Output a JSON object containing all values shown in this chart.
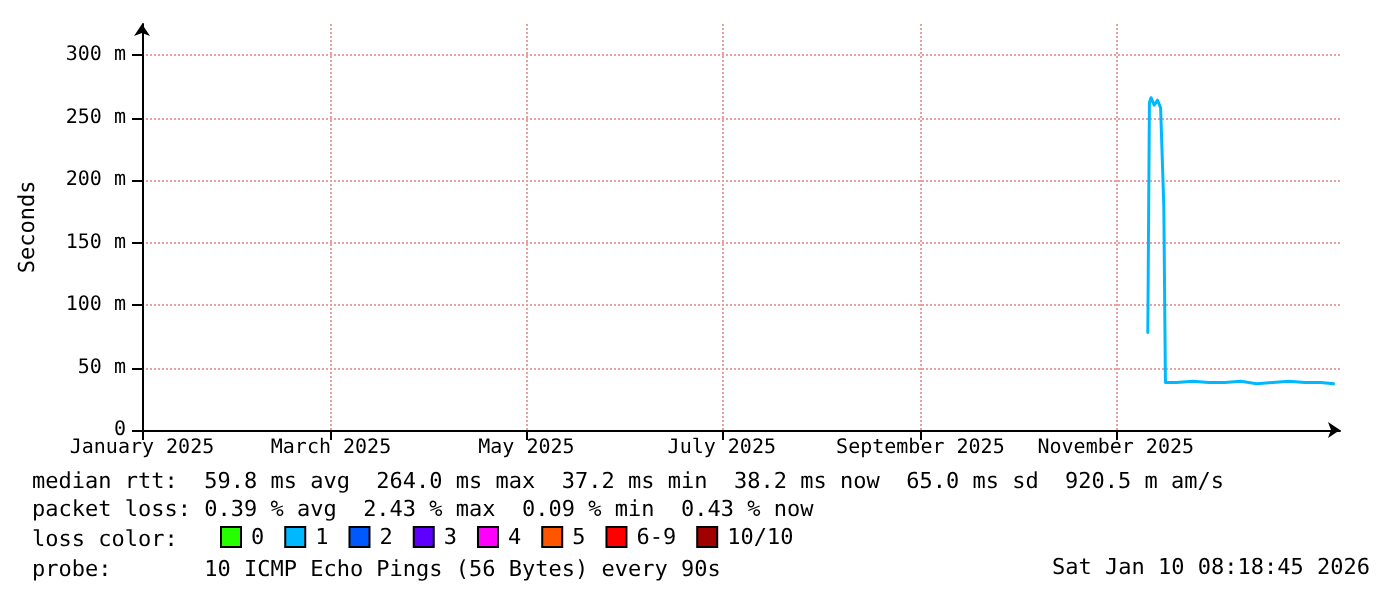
{
  "chart_data": {
    "type": "line",
    "ylabel": "Seconds",
    "xlim": [
      "2025-01-01",
      "2026-01-10"
    ],
    "xticks": [
      {
        "value": "2025-01-01",
        "label": "January 2025"
      },
      {
        "value": "2025-03-01",
        "label": "March 2025"
      },
      {
        "value": "2025-05-01",
        "label": "May 2025"
      },
      {
        "value": "2025-07-01",
        "label": "July 2025"
      },
      {
        "value": "2025-09-01",
        "label": "September 2025"
      },
      {
        "value": "2025-11-01",
        "label": "November 2025"
      }
    ],
    "ylim": [
      0,
      325
    ],
    "yticks": [
      0,
      {
        "value": 50,
        "label": "50 m"
      },
      {
        "value": 100,
        "label": "100 m"
      },
      {
        "value": 150,
        "label": "150 m"
      },
      {
        "value": 200,
        "label": "200 m"
      },
      {
        "value": 250,
        "label": "250 m"
      },
      {
        "value": 300,
        "label": "300 m"
      }
    ],
    "grid": true,
    "legend": "bottom left",
    "marker": "none",
    "line_style": "solid",
    "x": [
      "2025-11-11",
      "2025-11-11T12:00",
      "2025-11-12",
      "2025-11-13",
      "2025-11-14",
      "2025-11-15",
      "2025-11-16",
      "2025-11-16T12:00",
      "2025-11-20",
      "2025-11-25",
      "2025-11-30",
      "2025-12-05",
      "2025-12-10",
      "2025-12-15",
      "2025-12-20",
      "2025-12-25",
      "2025-12-30",
      "2026-01-04",
      "2026-01-08"
    ],
    "series": [
      {
        "name": "0",
        "color": "#26ff00",
        "values": [
          null,
          null,
          null,
          null,
          null,
          null,
          null,
          null,
          null,
          null,
          null,
          null,
          null,
          null,
          null,
          null,
          null,
          null,
          null
        ]
      },
      {
        "name": "1",
        "color": "#00b8ff",
        "values": [
          78,
          262,
          266,
          260,
          264,
          258,
          179,
          38,
          38,
          39,
          38,
          38,
          39,
          37,
          38,
          39,
          38,
          38,
          37
        ]
      },
      {
        "name": "2",
        "color": "#0059ff",
        "values": [
          null,
          null,
          null,
          null,
          null,
          null,
          null,
          null,
          null,
          null,
          null,
          null,
          null,
          null,
          null,
          null,
          null,
          null,
          null
        ]
      },
      {
        "name": "3",
        "color": "#5e00ff",
        "values": [
          null,
          null,
          null,
          null,
          null,
          null,
          null,
          null,
          null,
          null,
          null,
          null,
          null,
          null,
          null,
          null,
          null,
          null,
          null
        ]
      },
      {
        "name": "4",
        "color": "#ff00ff",
        "values": [
          null,
          null,
          null,
          null,
          null,
          null,
          null,
          null,
          null,
          null,
          null,
          null,
          null,
          null,
          null,
          null,
          null,
          null,
          null
        ]
      },
      {
        "name": "5",
        "color": "#ff5500",
        "values": [
          null,
          null,
          null,
          null,
          null,
          null,
          null,
          null,
          null,
          null,
          null,
          null,
          null,
          null,
          null,
          null,
          null,
          null,
          null
        ]
      },
      {
        "name": "6-9",
        "color": "#ff0000",
        "values": [
          null,
          null,
          null,
          null,
          null,
          null,
          null,
          null,
          null,
          null,
          null,
          null,
          null,
          null,
          null,
          null,
          null,
          null,
          null
        ]
      },
      {
        "name": "10/10",
        "color": "#a10000",
        "values": [
          null,
          null,
          null,
          null,
          null,
          null,
          null,
          null,
          null,
          null,
          null,
          null,
          null,
          null,
          null,
          null,
          null,
          null,
          null
        ]
      }
    ],
    "annotations": [
      "median rtt:  59.8 ms avg  264.0 ms max  37.2 ms min  38.2 ms now  65.0 ms sd  920.5 m am/s",
      "packet loss: 0.39 % avg  2.43 % max  0.09 % min  0.43 % now",
      "loss color:",
      "probe:       10 ICMP Echo Pings (56 Bytes) every 90s",
      "Sat Jan 10 08:18:45 2026"
    ]
  }
}
